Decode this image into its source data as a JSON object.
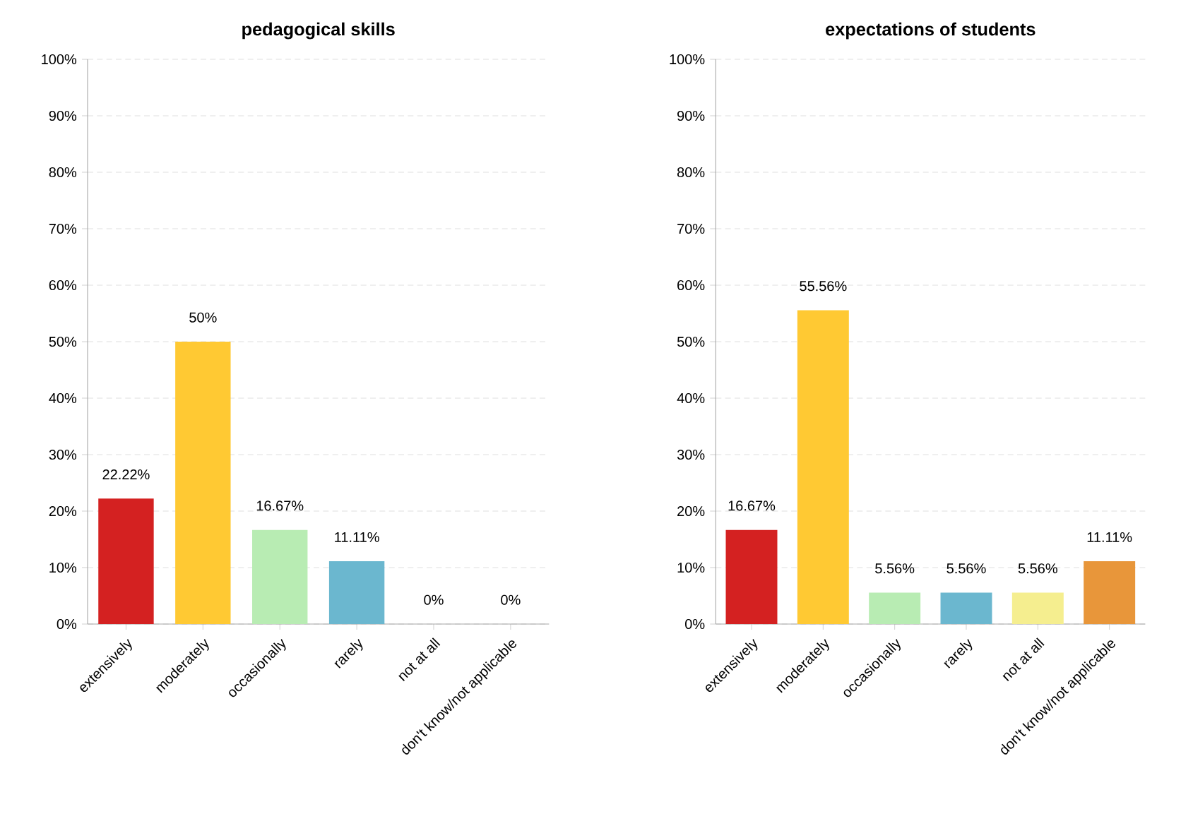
{
  "chart_data": [
    {
      "type": "bar",
      "title": "pedagogical skills",
      "categories": [
        "extensively",
        "moderately",
        "occasionally",
        "rarely",
        "not at all",
        "don't know/not applicable"
      ],
      "values": [
        22.22,
        50,
        16.67,
        11.11,
        0,
        0
      ],
      "value_labels": [
        "22.22%",
        "50%",
        "16.67%",
        "11.11%",
        "0%",
        "0%"
      ],
      "colors": [
        "#d42121",
        "#ffc933",
        "#b8ecb3",
        "#6bb7cf",
        "#f5ee8f",
        "#e8963a"
      ],
      "ylim": [
        0,
        100
      ],
      "yticks": [
        {
          "value": 0,
          "label": "0%"
        },
        {
          "value": 10,
          "label": "10%"
        },
        {
          "value": 20,
          "label": "20%"
        },
        {
          "value": 30,
          "label": "30%"
        },
        {
          "value": 40,
          "label": "40%"
        },
        {
          "value": 50,
          "label": "50%"
        },
        {
          "value": 60,
          "label": "60%"
        },
        {
          "value": 70,
          "label": "70%"
        },
        {
          "value": 80,
          "label": "80%"
        },
        {
          "value": 90,
          "label": "90%"
        },
        {
          "value": 100,
          "label": "100%"
        }
      ],
      "grid": "y"
    },
    {
      "type": "bar",
      "title": "expectations of students",
      "categories": [
        "extensively",
        "moderately",
        "occasionally",
        "rarely",
        "not at all",
        "don't know/not applicable"
      ],
      "values": [
        16.67,
        55.56,
        5.56,
        5.56,
        5.56,
        11.11
      ],
      "value_labels": [
        "16.67%",
        "55.56%",
        "5.56%",
        "5.56%",
        "5.56%",
        "11.11%"
      ],
      "colors": [
        "#d42121",
        "#ffc933",
        "#b8ecb3",
        "#6bb7cf",
        "#f5ee8f",
        "#e8963a"
      ],
      "ylim": [
        0,
        100
      ],
      "yticks": [
        {
          "value": 0,
          "label": "0%"
        },
        {
          "value": 10,
          "label": "10%"
        },
        {
          "value": 20,
          "label": "20%"
        },
        {
          "value": 30,
          "label": "30%"
        },
        {
          "value": 40,
          "label": "40%"
        },
        {
          "value": 50,
          "label": "50%"
        },
        {
          "value": 60,
          "label": "60%"
        },
        {
          "value": 70,
          "label": "70%"
        },
        {
          "value": 80,
          "label": "80%"
        },
        {
          "value": 90,
          "label": "90%"
        },
        {
          "value": 100,
          "label": "100%"
        }
      ],
      "grid": "y"
    }
  ]
}
